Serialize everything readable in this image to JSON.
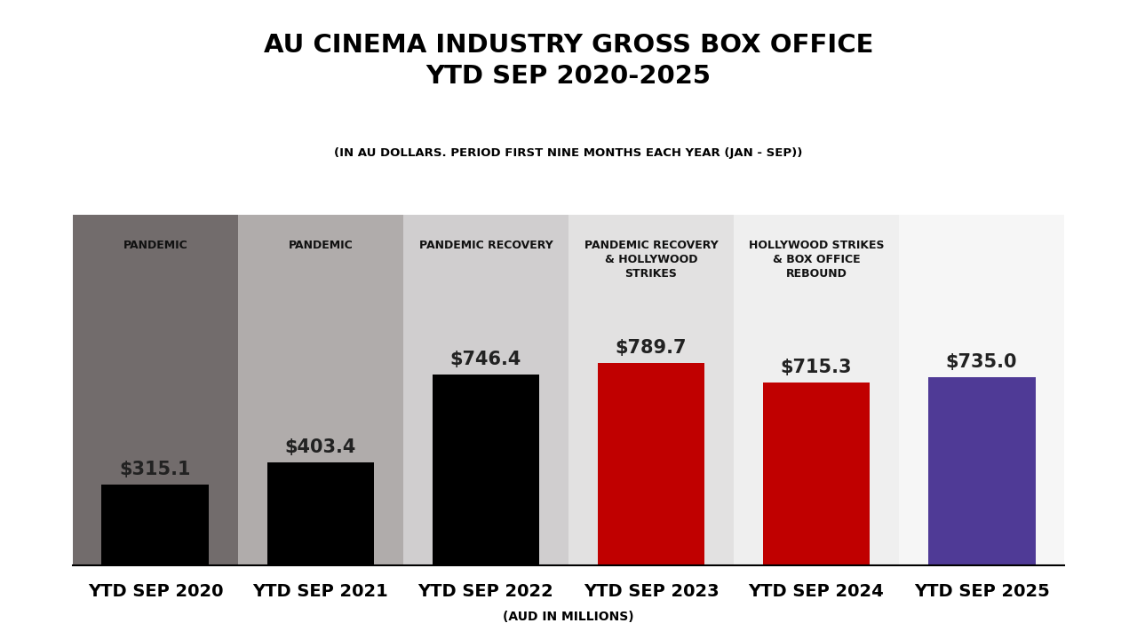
{
  "chart_data": {
    "type": "bar",
    "title": "AU CINEMA INDUSTRY GROSS BOX OFFICE YTD SEP 2020-2025",
    "subtitle": "(IN AU DOLLARS. PERIOD FIRST NINE MONTHS EACH YEAR (JAN - SEP))",
    "x_label": "(AUD IN MILLIONS)",
    "categories": [
      "YTD SEP 2020",
      "YTD SEP 2021",
      "YTD SEP 2022",
      "YTD SEP 2023",
      "YTD SEP 2024",
      "YTD SEP 2025"
    ],
    "values": [
      315.1,
      403.4,
      746.4,
      789.7,
      715.3,
      735.0
    ],
    "value_labels": [
      "$315.1",
      "$403.4",
      "$746.4",
      "$789.7",
      "$715.3",
      "$735.0"
    ],
    "colors": [
      "#000000",
      "#000000",
      "#000000",
      "#c00000",
      "#c00000",
      "#4f3a96"
    ],
    "annotations": [
      {
        "category": "YTD SEP 2020",
        "text": "PANDEMIC"
      },
      {
        "category": "YTD SEP 2021",
        "text": "PANDEMIC"
      },
      {
        "category": "YTD SEP 2022",
        "text": "PANDEMIC RECOVERY"
      },
      {
        "category": "YTD SEP 2023",
        "text": "PANDEMIC RECOVERY & HOLLYWOOD STRIKES"
      },
      {
        "category": "YTD SEP 2024",
        "text": "HOLLYWOOD STRIKES & BOX OFFICE REBOUND"
      }
    ],
    "ylim": [
      0,
      1370
    ],
    "yticks": [],
    "data_labels": true,
    "tick_labels": "x",
    "grid": false
  }
}
